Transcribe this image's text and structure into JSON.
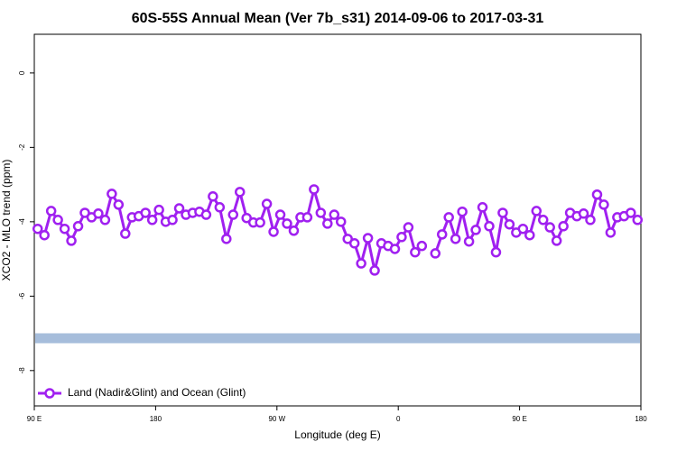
{
  "chart_data": {
    "type": "line",
    "title": "60S-55S Annual Mean (Ver 7b_s31)   2014-09-06 to 2017-03-31",
    "x_label": "Longitude (deg E)",
    "y_label": "XCO2 - MLO trend (ppm)",
    "xlim": [
      90,
      540
    ],
    "ylim": [
      -8.95,
      1.04
    ],
    "xticks": [
      {
        "value": 90,
        "label": "90 E"
      },
      {
        "value": 180,
        "label": "180"
      },
      {
        "value": 270,
        "label": "90 W"
      },
      {
        "value": 360,
        "label": "0"
      },
      {
        "value": 450,
        "label": "90 E"
      },
      {
        "value": 540,
        "label": "180"
      }
    ],
    "yticks": [
      0,
      -2,
      -4,
      -6,
      -8
    ],
    "legend_position": "bottom-left",
    "reference_band": {
      "value": -7.13,
      "color": "#a6bddb"
    },
    "x": [
      92.5,
      97.5,
      102.5,
      107.5,
      112.5,
      117.5,
      122.5,
      127.5,
      132.5,
      137.5,
      142.5,
      147.5,
      152.5,
      157.5,
      162.5,
      167.5,
      172.5,
      177.5,
      182.5,
      187.5,
      192.5,
      197.5,
      202.5,
      207.5,
      212.5,
      217.5,
      222.5,
      227.5,
      232.5,
      237.5,
      242.5,
      247.5,
      252.5,
      257.5,
      262.5,
      267.5,
      272.5,
      277.5,
      282.5,
      287.5,
      292.5,
      297.5,
      302.5,
      307.5,
      312.5,
      317.5,
      322.5,
      327.5,
      332.5,
      337.5,
      342.5,
      347.5,
      352.5,
      357.5,
      362.5,
      367.5,
      372.5,
      377.5,
      382.5,
      387.5,
      392.5,
      397.5,
      402.5,
      407.5,
      412.5,
      417.5,
      422.5,
      427.5,
      432.5,
      437.5,
      442.5,
      447.5,
      452.5,
      457.5,
      462.5,
      467.5,
      472.5,
      477.5,
      482.5,
      487.5,
      492.5,
      497.5,
      502.5,
      507.5,
      512.5,
      517.5,
      522.5,
      527.5,
      532.5,
      537.5
    ],
    "series": [
      {
        "name": "Land (Nadir&Glint) and Ocean (Glint)",
        "color": "#a020f0",
        "values": [
          -4.19,
          -4.36,
          -3.71,
          -3.95,
          -4.19,
          -4.51,
          -4.12,
          -3.76,
          -3.88,
          -3.78,
          -3.95,
          -3.25,
          -3.54,
          -4.32,
          -3.88,
          -3.85,
          -3.76,
          -3.95,
          -3.68,
          -4.0,
          -3.95,
          -3.64,
          -3.81,
          -3.76,
          -3.73,
          -3.81,
          -3.32,
          -3.61,
          -4.46,
          -3.81,
          -3.2,
          -3.9,
          -4.02,
          -4.02,
          -3.52,
          -4.27,
          -3.81,
          -4.05,
          -4.24,
          -3.88,
          -3.88,
          -3.13,
          -3.76,
          -4.05,
          -3.81,
          -4.0,
          -4.46,
          -4.58,
          -5.12,
          -4.44,
          -5.31,
          -4.58,
          -4.65,
          -4.73,
          -4.41,
          -4.15,
          -4.82,
          -4.65,
          null,
          -4.85,
          -4.34,
          -3.88,
          -4.46,
          -3.73,
          -4.53,
          -4.22,
          -3.61,
          -4.12,
          -4.82,
          -3.76,
          -4.07,
          -4.29,
          -4.19,
          -4.36,
          -3.71,
          -3.95,
          -4.15,
          -4.51,
          -4.12,
          -3.76,
          -3.85,
          -3.78,
          -3.95,
          -3.27,
          -3.54,
          -4.29,
          -3.88,
          -3.85,
          -3.76,
          -3.95
        ]
      }
    ]
  }
}
